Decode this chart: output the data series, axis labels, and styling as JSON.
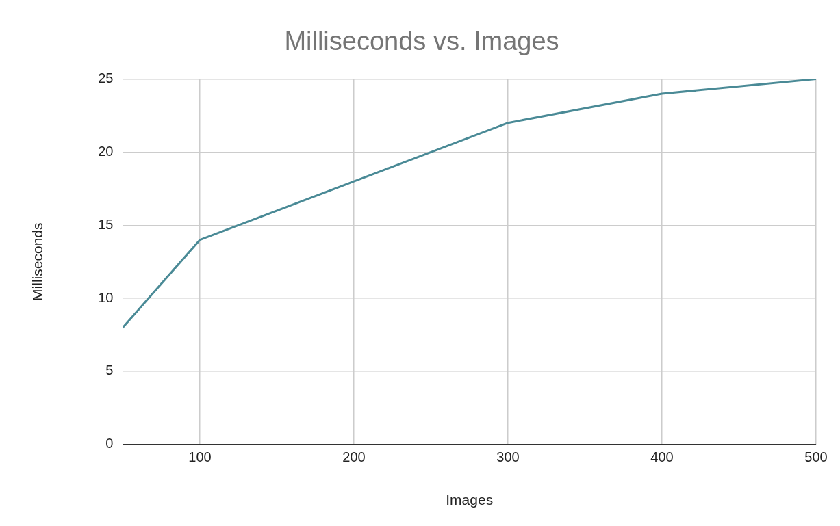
{
  "chart_data": {
    "type": "line",
    "title": "Milliseconds vs. Images",
    "xlabel": "Images",
    "ylabel": "Milliseconds",
    "x": [
      50,
      100,
      200,
      300,
      400,
      500
    ],
    "series": [
      {
        "color": "#4a8a96",
        "values": [
          8,
          14,
          18,
          22,
          24,
          25
        ]
      }
    ],
    "xlim": [
      50,
      500
    ],
    "xticks": [
      100,
      200,
      300,
      400,
      500
    ],
    "ylim": [
      0,
      25
    ],
    "yticks": [
      0,
      5,
      10,
      15,
      20,
      25
    ],
    "grid": true,
    "legend": false,
    "marker": "none",
    "line_style": "solid"
  }
}
